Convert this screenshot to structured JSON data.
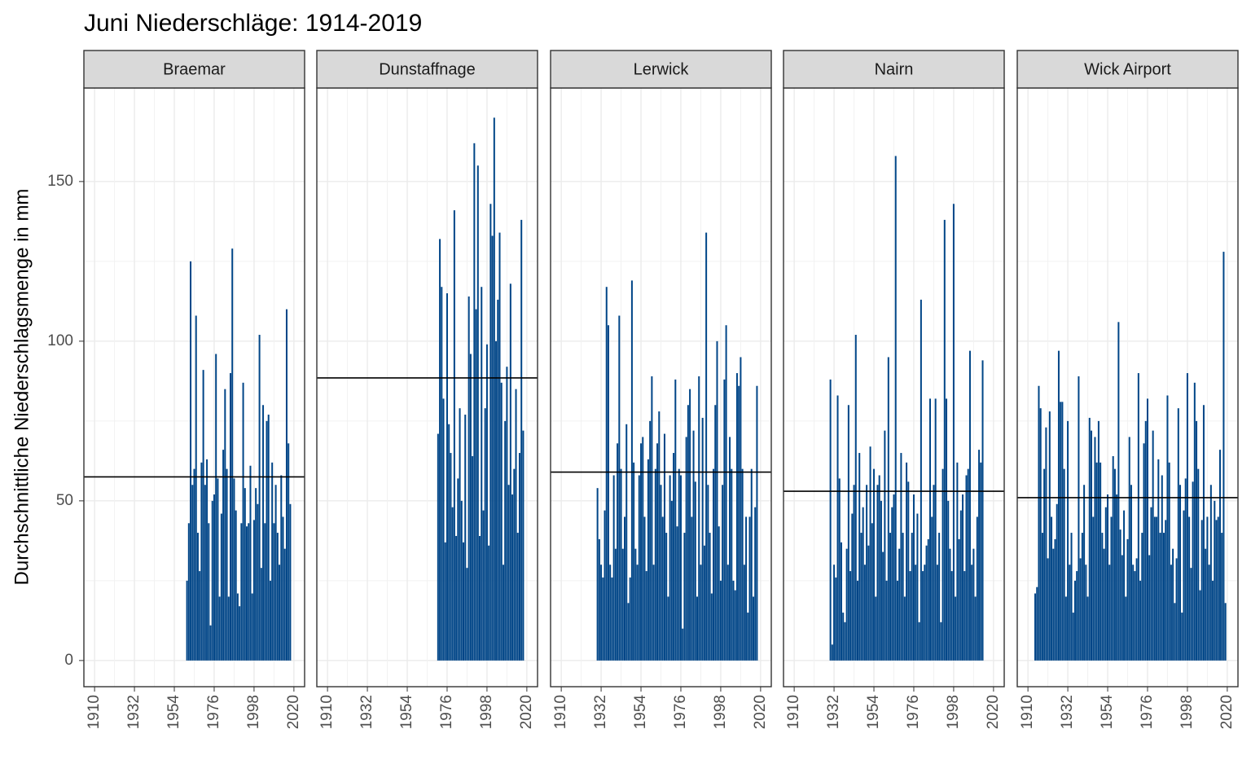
{
  "chart_data": {
    "type": "bar",
    "title": "Juni Niederschläge: 1914-2019",
    "y_label": "Durchschnittliche Niederschlagsmenge in mm",
    "color": "#004587",
    "mean_color": "#000000",
    "grid": true,
    "ylim": [
      -8.2,
      179.3
    ],
    "yticks": [
      0,
      50,
      100,
      150
    ],
    "xlim": [
      1904.1,
      2025.9
    ],
    "xticks": [
      1910,
      1932,
      1954,
      1976,
      1998,
      2020
    ],
    "panels": [
      {
        "name": "Braemar",
        "x_start": 1961,
        "mean": 57.5,
        "values": [
          25,
          43,
          125,
          55,
          60,
          108,
          40,
          28,
          62,
          91,
          55,
          63,
          43,
          11,
          50,
          52,
          96,
          57,
          20,
          46,
          66,
          85,
          60,
          20,
          90,
          129,
          57,
          47,
          21,
          17,
          43,
          87,
          54,
          42,
          43,
          61,
          21,
          44,
          54,
          49,
          102,
          29,
          80,
          43,
          75,
          77,
          25,
          62,
          43,
          55,
          40,
          30,
          58,
          45,
          35,
          110,
          68,
          49
        ]
      },
      {
        "name": "Dunstaffnage",
        "x_start": 1971,
        "mean": 88.5,
        "values": [
          71,
          132,
          117,
          82,
          37,
          115,
          74,
          65,
          48,
          141,
          39,
          57,
          79,
          50,
          37,
          77,
          29,
          114,
          96,
          64,
          162,
          110,
          155,
          39,
          117,
          47,
          79,
          99,
          36,
          143,
          133,
          170,
          100,
          113,
          134,
          87,
          30,
          75,
          92,
          55,
          118,
          52,
          60,
          85,
          40,
          65,
          138,
          72
        ]
      },
      {
        "name": "Lerwick",
        "x_start": 1930,
        "mean": 59,
        "values": [
          54,
          38,
          30,
          26,
          47,
          117,
          105,
          30,
          26,
          58,
          35,
          68,
          108,
          60,
          35,
          45,
          74,
          18,
          26,
          119,
          62,
          35,
          30,
          58,
          68,
          70,
          45,
          28,
          63,
          75,
          89,
          30,
          60,
          68,
          78,
          55,
          45,
          71,
          40,
          20,
          58,
          50,
          65,
          88,
          42,
          60,
          58,
          10,
          40,
          70,
          80,
          85,
          45,
          72,
          56,
          20,
          89,
          30,
          76,
          36,
          134,
          55,
          40,
          21,
          60,
          80,
          100,
          42,
          25,
          55,
          88,
          105,
          30,
          70,
          60,
          25,
          22,
          90,
          86,
          95,
          60,
          30,
          45,
          15,
          45,
          60,
          20,
          48,
          86
        ]
      },
      {
        "name": "Nairn",
        "x_start": 1930,
        "mean": 53,
        "values": [
          88,
          5,
          30,
          26,
          83,
          57,
          37,
          15,
          12,
          35,
          80,
          28,
          46,
          55,
          102,
          25,
          65,
          40,
          48,
          30,
          55,
          36,
          67,
          43,
          60,
          20,
          55,
          58,
          50,
          34,
          72,
          25,
          95,
          40,
          48,
          52,
          158,
          25,
          35,
          65,
          40,
          20,
          62,
          56,
          28,
          40,
          52,
          30,
          46,
          12,
          113,
          28,
          30,
          36,
          38,
          82,
          45,
          55,
          82,
          30,
          40,
          12,
          60,
          138,
          82,
          50,
          35,
          28,
          143,
          20,
          62,
          38,
          47,
          52,
          28,
          58,
          60,
          97,
          30,
          35,
          20,
          45,
          66,
          62,
          94
        ]
      },
      {
        "name": "Wick Airport",
        "x_start": 1914,
        "mean": 51,
        "values": [
          21,
          23,
          86,
          79,
          40,
          60,
          73,
          32,
          78,
          45,
          35,
          38,
          49,
          97,
          81,
          81,
          60,
          20,
          75,
          30,
          40,
          15,
          25,
          28,
          89,
          32,
          40,
          55,
          30,
          20,
          76,
          72,
          45,
          70,
          62,
          75,
          62,
          40,
          35,
          48,
          52,
          30,
          45,
          64,
          60,
          52,
          106,
          41,
          33,
          47,
          20,
          38,
          70,
          55,
          30,
          28,
          32,
          90,
          25,
          40,
          68,
          75,
          82,
          33,
          48,
          72,
          45,
          45,
          63,
          40,
          58,
          40,
          44,
          83,
          62,
          30,
          35,
          18,
          32,
          79,
          55,
          15,
          47,
          57,
          90,
          45,
          29,
          56,
          87,
          75,
          60,
          22,
          44,
          80,
          35,
          45,
          30,
          55,
          25,
          50,
          44,
          45,
          66,
          40,
          128,
          18
        ]
      }
    ]
  }
}
